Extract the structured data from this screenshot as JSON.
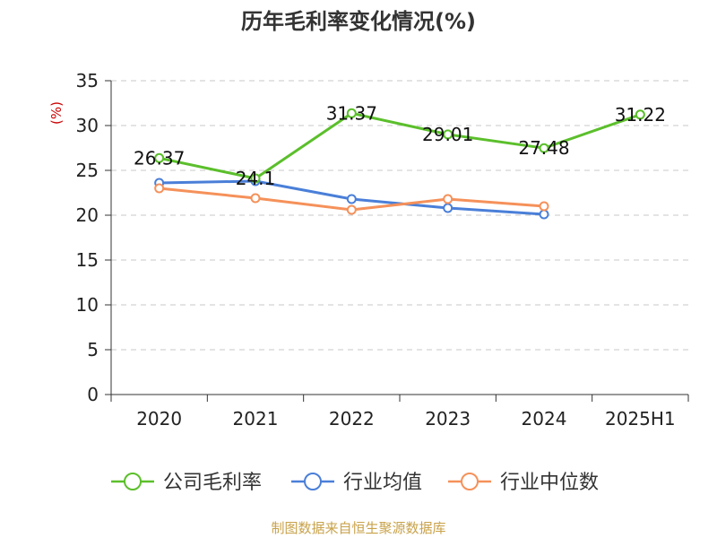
{
  "chart_data": {
    "type": "line",
    "title": "历年毛利率变化情况(%)",
    "ylabel": "(%)",
    "xlabel": "",
    "categories": [
      "2020",
      "2021",
      "2022",
      "2023",
      "2024",
      "2025H1"
    ],
    "ylim": [
      0,
      35
    ],
    "yticks": [
      0,
      5,
      10,
      15,
      20,
      25,
      30,
      35
    ],
    "grid": true,
    "legend_position": "bottom",
    "series": [
      {
        "name": "公司毛利率",
        "color": "#5bbf2b",
        "values": [
          26.37,
          24.1,
          31.37,
          29.01,
          27.48,
          31.22
        ],
        "labels": [
          "26.37",
          "24.1",
          "31.37",
          "29.01",
          "27.48",
          "31.22"
        ]
      },
      {
        "name": "行业均值",
        "color": "#4a7fd8",
        "values": [
          23.6,
          23.8,
          21.8,
          20.8,
          20.1,
          null
        ]
      },
      {
        "name": "行业中位数",
        "color": "#f5915a",
        "values": [
          23.0,
          21.9,
          20.6,
          21.8,
          21.0,
          null
        ]
      }
    ]
  },
  "footer": {
    "source": "制图数据来自恒生聚源数据库"
  }
}
